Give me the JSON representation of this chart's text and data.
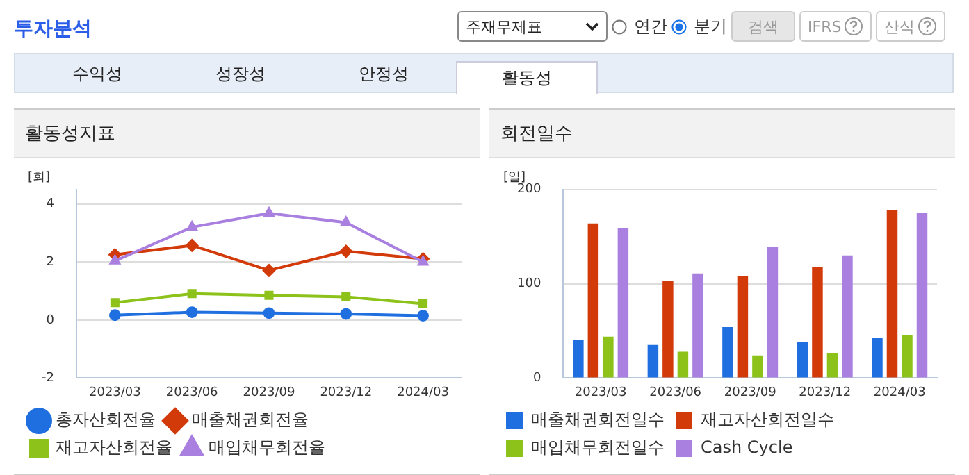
{
  "chart_data": [
    {
      "type": "other",
      "title": "투자분석",
      "annotations": [
        "주재무제표",
        "연간",
        "분기",
        "검색",
        "IFRS",
        "산식",
        "수익성",
        "성장성",
        "안정성",
        "활동성"
      ]
    },
    {
      "type": "line",
      "title": "활동성지표",
      "ylabel": "[회]",
      "categories": [
        "2023/03",
        "2023/06",
        "2023/09",
        "2023/12",
        "2024/03"
      ],
      "ylim": [
        -2,
        4.5
      ],
      "yticks": [
        -2,
        0,
        2,
        4
      ],
      "grid": "y",
      "legend": "bottom",
      "series": [
        {
          "name": "총자산회전율",
          "color": "#1f6fe0",
          "marker": "circle",
          "values": [
            0.17,
            0.27,
            0.24,
            0.21,
            0.15
          ]
        },
        {
          "name": "매출채권회전율",
          "color": "#d23a0a",
          "marker": "diamond",
          "values": [
            2.25,
            2.57,
            1.71,
            2.37,
            2.11
          ]
        },
        {
          "name": "재고자산회전율",
          "color": "#8cc21a",
          "marker": "square",
          "values": [
            0.6,
            0.91,
            0.85,
            0.8,
            0.56
          ]
        },
        {
          "name": "매입채무회전율",
          "color": "#a980e0",
          "marker": "triangle",
          "values": [
            2.04,
            3.2,
            3.68,
            3.36,
            2.0
          ]
        }
      ]
    },
    {
      "type": "bar",
      "title": "회전일수",
      "ylabel": "[일]",
      "categories": [
        "2023/03",
        "2023/06",
        "2023/09",
        "2023/12",
        "2024/03"
      ],
      "ylim": [
        0,
        200
      ],
      "yticks": [
        0,
        100,
        200
      ],
      "grid": "y",
      "legend": "bottom",
      "series": [
        {
          "name": "매출채권회전일수",
          "color": "#1f6fe0",
          "values": [
            40,
            35,
            54,
            38,
            43
          ]
        },
        {
          "name": "재고자산회전일수",
          "color": "#d23a0a",
          "values": [
            164,
            103,
            108,
            118,
            178
          ]
        },
        {
          "name": "매입채무회전일수",
          "color": "#8cc21a",
          "values": [
            44,
            28,
            24,
            26,
            46
          ]
        },
        {
          "name": "Cash Cycle",
          "color": "#a980e0",
          "values": [
            159,
            111,
            139,
            130,
            175
          ]
        }
      ]
    }
  ]
}
